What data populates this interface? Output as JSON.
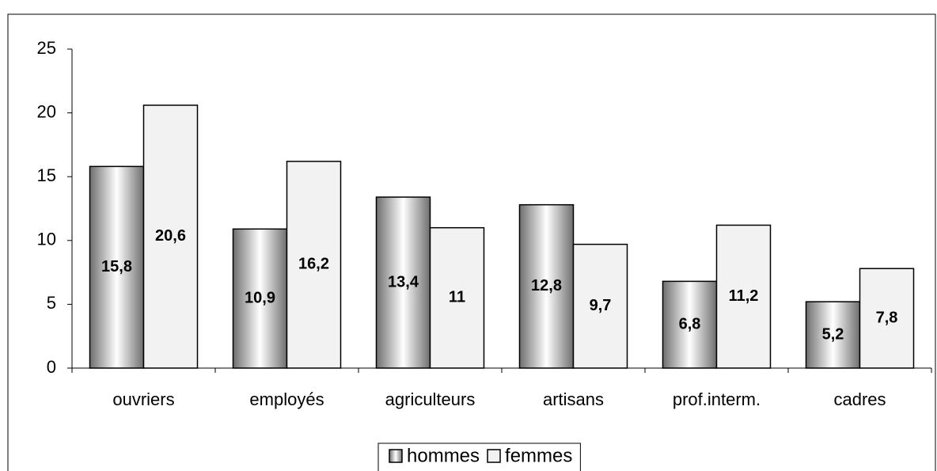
{
  "chart_data": {
    "type": "bar",
    "categories": [
      "ouvriers",
      "employés",
      "agriculteurs",
      "artisans",
      "prof.interm.",
      "cadres"
    ],
    "series": [
      {
        "name": "hommes",
        "color": "#6e6e6e",
        "values": [
          15.8,
          10.9,
          13.4,
          12.8,
          6.8,
          5.2
        ],
        "value_labels": [
          "15,8",
          "10,9",
          "13,4",
          "12,8",
          "6,8",
          "5,2"
        ]
      },
      {
        "name": "femmes",
        "color": "#f2f2f2",
        "values": [
          20.6,
          16.2,
          11,
          9.7,
          11.2,
          7.8
        ],
        "value_labels": [
          "20,6",
          "16,2",
          "11",
          "9,7",
          "11,2",
          "7,8"
        ]
      }
    ],
    "ylim": [
      0,
      25
    ],
    "yticks": [
      0,
      5,
      10,
      15,
      20,
      25
    ],
    "grid": false,
    "legend": "bottom"
  }
}
